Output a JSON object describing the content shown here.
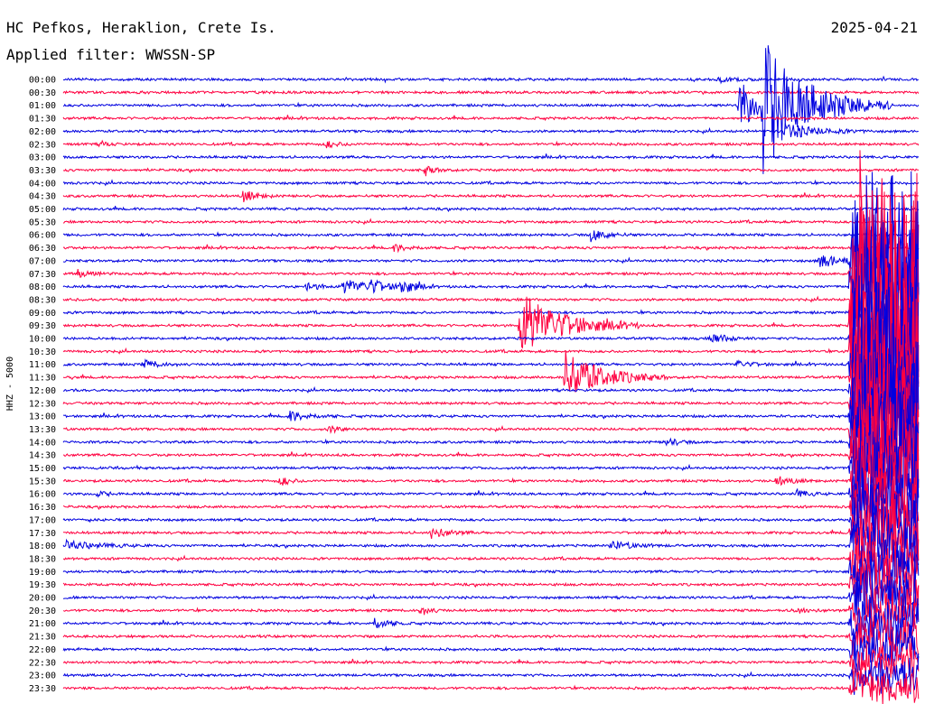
{
  "header": {
    "station": "HC Pefkos, Heraklion, Crete Is.",
    "date": "2025-04-21",
    "filter": "Applied filter: WWSSN-SP",
    "channel": "HHZ - 5000"
  },
  "colors": {
    "trace_a": "#0000e0",
    "trace_b": "#ff0040",
    "text": "#000000"
  },
  "chart_data": {
    "type": "line",
    "title": "HC Pefkos, Heraklion, Crete Is.",
    "subtitle": "Applied filter: WWSSN-SP",
    "ylabel": "HHZ - 5000",
    "xlabel": "",
    "date": "2025-04-21",
    "rows": [
      "00:00",
      "00:30",
      "01:00",
      "01:30",
      "02:00",
      "02:30",
      "03:00",
      "03:30",
      "04:00",
      "04:30",
      "05:00",
      "05:30",
      "06:00",
      "06:30",
      "07:00",
      "07:30",
      "08:00",
      "08:30",
      "09:00",
      "09:30",
      "10:00",
      "10:30",
      "11:00",
      "11:30",
      "12:00",
      "12:30",
      "13:00",
      "13:30",
      "14:00",
      "14:30",
      "15:00",
      "15:30",
      "16:00",
      "16:30",
      "17:00",
      "17:30",
      "18:00",
      "18:30",
      "19:00",
      "19:30",
      "20:00",
      "20:30",
      "21:00",
      "21:30",
      "22:00",
      "22:30",
      "23:00",
      "23:30"
    ],
    "row_minutes": 30,
    "alternate_colors": [
      "#0000e0",
      "#ff0040"
    ],
    "grid": false,
    "events": [
      {
        "row": "00:00",
        "minute": 23.0,
        "amp": 3,
        "dur": 0.6
      },
      {
        "row": "01:00",
        "minute": 23.7,
        "amp": 30,
        "dur": 0.7
      },
      {
        "row": "01:00",
        "minute": 24.5,
        "amp": 70,
        "dur": 1.5
      },
      {
        "row": "02:00",
        "minute": 25.3,
        "amp": 9,
        "dur": 1.0
      },
      {
        "row": "02:30",
        "minute": 1.3,
        "amp": 3,
        "dur": 0.3
      },
      {
        "row": "02:30",
        "minute": 9.2,
        "amp": 4,
        "dur": 0.4
      },
      {
        "row": "03:30",
        "minute": 12.7,
        "amp": 6,
        "dur": 0.3
      },
      {
        "row": "04:30",
        "minute": 6.3,
        "amp": 7,
        "dur": 0.4
      },
      {
        "row": "06:00",
        "minute": 18.5,
        "amp": 7,
        "dur": 0.5
      },
      {
        "row": "06:30",
        "minute": 11.6,
        "amp": 4,
        "dur": 0.5
      },
      {
        "row": "07:00",
        "minute": 26.5,
        "amp": 8,
        "dur": 0.8
      },
      {
        "row": "07:30",
        "minute": 0.5,
        "amp": 4,
        "dur": 0.4
      },
      {
        "row": "08:00",
        "minute": 8.5,
        "amp": 4,
        "dur": 0.5
      },
      {
        "row": "08:00",
        "minute": 9.8,
        "amp": 8,
        "dur": 1.0
      },
      {
        "row": "08:00",
        "minute": 10.7,
        "amp": 6,
        "dur": 0.5
      },
      {
        "row": "08:00",
        "minute": 11.8,
        "amp": 9,
        "dur": 0.4
      },
      {
        "row": "09:30",
        "minute": 16.0,
        "amp": 38,
        "dur": 1.4
      },
      {
        "row": "10:00",
        "minute": 22.7,
        "amp": 7,
        "dur": 0.5
      },
      {
        "row": "11:00",
        "minute": 2.8,
        "amp": 5,
        "dur": 0.5
      },
      {
        "row": "11:00",
        "minute": 23.6,
        "amp": 4,
        "dur": 0.5
      },
      {
        "row": "11:30",
        "minute": 17.6,
        "amp": 30,
        "dur": 1.2
      },
      {
        "row": "13:00",
        "minute": 7.9,
        "amp": 6,
        "dur": 0.6
      },
      {
        "row": "13:30",
        "minute": 9.3,
        "amp": 4,
        "dur": 0.4
      },
      {
        "row": "14:00",
        "minute": 21.1,
        "amp": 5,
        "dur": 0.4
      },
      {
        "row": "15:30",
        "minute": 7.6,
        "amp": 6,
        "dur": 0.3
      },
      {
        "row": "15:30",
        "minute": 25.0,
        "amp": 5,
        "dur": 0.5
      },
      {
        "row": "16:00",
        "minute": 1.1,
        "amp": 3,
        "dur": 0.4
      },
      {
        "row": "16:00",
        "minute": 25.7,
        "amp": 4,
        "dur": 0.4
      },
      {
        "row": "17:30",
        "minute": 12.9,
        "amp": 7,
        "dur": 0.5
      },
      {
        "row": "18:00",
        "minute": 0.1,
        "amp": 5,
        "dur": 1.0
      },
      {
        "row": "18:00",
        "minute": 19.2,
        "amp": 5,
        "dur": 0.7
      },
      {
        "row": "20:30",
        "minute": 12.5,
        "amp": 6,
        "dur": 0.3
      },
      {
        "row": "20:30",
        "minute": 25.6,
        "amp": 4,
        "dur": 0.4
      },
      {
        "row": "21:00",
        "minute": 10.9,
        "amp": 7,
        "dur": 0.4
      }
    ],
    "major_event": {
      "start_row": "07:00",
      "start_minute": 27.6,
      "amp": 240,
      "tail_rows": [
        "07:00",
        "07:30",
        "08:00",
        "08:30",
        "09:00",
        "09:30",
        "10:00",
        "10:30",
        "11:00",
        "11:30",
        "12:00",
        "12:30",
        "13:00",
        "13:30",
        "14:00",
        "14:30",
        "15:00",
        "15:30",
        "16:00",
        "16:30",
        "17:00",
        "17:30",
        "18:00",
        "18:30",
        "19:00",
        "19:30",
        "20:00",
        "20:30",
        "21:00",
        "21:30",
        "22:00",
        "22:30",
        "23:00",
        "23:30"
      ]
    }
  }
}
